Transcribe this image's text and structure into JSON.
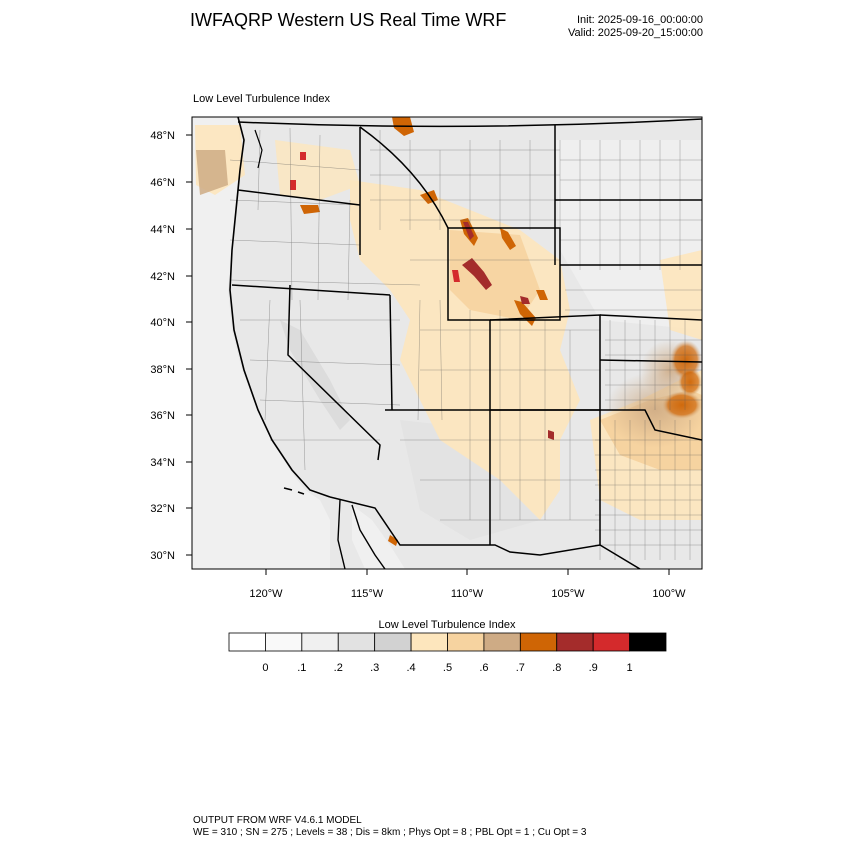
{
  "header": {
    "title": "IWFAQRP Western US Real Time WRF",
    "init": "Init: 2025-09-16_00:00:00",
    "valid": "Valid: 2025-09-20_15:00:00"
  },
  "map": {
    "subtitle": "Low Level Turbulence Index",
    "lat_labels": [
      "30°N",
      "32°N",
      "34°N",
      "36°N",
      "38°N",
      "40°N",
      "42°N",
      "44°N",
      "46°N",
      "48°N"
    ],
    "lon_labels": [
      "120°W",
      "115°W",
      "110°W",
      "105°W",
      "100°W"
    ]
  },
  "colorbar": {
    "title": "Low Level Turbulence Index",
    "colors": [
      "#ffffff",
      "#f9f9f9",
      "#f0f0f0",
      "#e2e2e2",
      "#d2d2d2",
      "#fde6bd",
      "#f6d3a0",
      "#ceab85",
      "#cf6505",
      "#a42c2b",
      "#d42a2c",
      "#000000"
    ],
    "labels": [
      "0",
      ".1",
      ".2",
      ".3",
      ".4",
      ".5",
      ".6",
      ".7",
      ".8",
      ".9",
      "1"
    ]
  },
  "footer": {
    "line1": "OUTPUT FROM WRF V4.6.1 MODEL",
    "line2": "WE = 310 ; SN = 275 ; Levels = 38 ; Dis = 8km ; Phys Opt = 8 ; PBL Opt = 1 ; Cu Opt = 3"
  }
}
